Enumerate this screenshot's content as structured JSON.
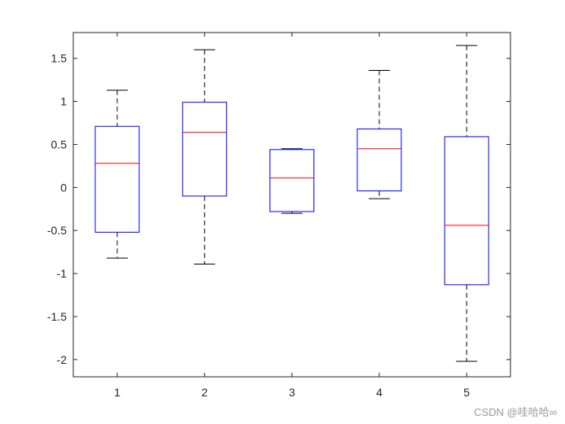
{
  "chart_data": {
    "type": "box",
    "categories": [
      "1",
      "2",
      "3",
      "4",
      "5"
    ],
    "boxes": [
      {
        "category": "1",
        "whisker_low": -0.82,
        "q1": -0.52,
        "median": 0.28,
        "q3": 0.71,
        "whisker_high": 1.13
      },
      {
        "category": "2",
        "whisker_low": -0.89,
        "q1": -0.1,
        "median": 0.64,
        "q3": 0.99,
        "whisker_high": 1.6
      },
      {
        "category": "3",
        "whisker_low": -0.3,
        "q1": -0.28,
        "median": 0.11,
        "q3": 0.44,
        "whisker_high": 0.45
      },
      {
        "category": "4",
        "whisker_low": -0.13,
        "q1": -0.04,
        "median": 0.45,
        "q3": 0.68,
        "whisker_high": 1.36
      },
      {
        "category": "5",
        "whisker_low": -2.02,
        "q1": -1.13,
        "median": -0.44,
        "q3": 0.59,
        "whisker_high": 1.65
      }
    ],
    "ylim": [
      -2.2,
      1.8
    ],
    "yticks": [
      -2,
      -1.5,
      -1,
      -0.5,
      0,
      0.5,
      1,
      1.5
    ],
    "ytick_labels": [
      "-2",
      "-1.5",
      "-1",
      "-0.5",
      "0",
      "0.5",
      "1",
      "1.5"
    ],
    "title": "",
    "xlabel": "",
    "ylabel": "",
    "grid": false,
    "colors": {
      "box": "#0000ff",
      "median": "#ff0000",
      "whisker": "#000000",
      "axes": "#262626"
    }
  },
  "watermark": "CSDN @哇哈哈∞"
}
